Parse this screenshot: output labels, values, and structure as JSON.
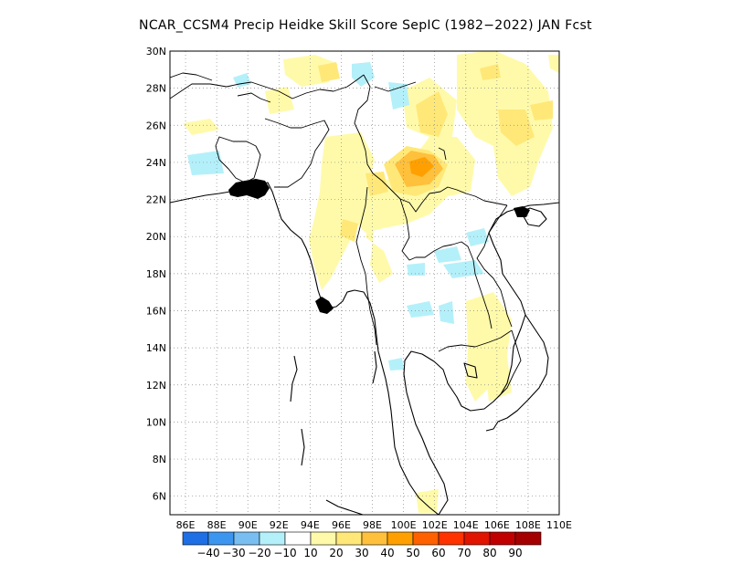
{
  "title": "NCAR_CCSM4 Precip Heidke Skill Score SepIC (1982−2022) JAN Fcst",
  "map": {
    "lat_ticks": [
      "30N",
      "28N",
      "26N",
      "24N",
      "22N",
      "20N",
      "18N",
      "16N",
      "14N",
      "12N",
      "10N",
      "8N",
      "6N"
    ],
    "lat_values": [
      30,
      28,
      26,
      24,
      22,
      20,
      18,
      16,
      14,
      12,
      10,
      8,
      6
    ],
    "lon_ticks": [
      "86E",
      "88E",
      "90E",
      "92E",
      "94E",
      "96E",
      "98E",
      "100E",
      "102E",
      "104E",
      "106E",
      "108E",
      "110E"
    ],
    "lon_values": [
      86,
      88,
      90,
      92,
      94,
      96,
      98,
      100,
      102,
      104,
      106,
      108,
      110
    ],
    "extent": {
      "lon_min": 85.0,
      "lon_max": 110.0,
      "lat_min": 5.0,
      "lat_max": 30.0
    },
    "gridlines": true
  },
  "colorbar": {
    "labels": [
      "−40",
      "−30",
      "−20",
      "−10",
      "10",
      "20",
      "30",
      "40",
      "50",
      "60",
      "70",
      "80",
      "90"
    ],
    "colors": [
      "#1e6ee6",
      "#3c96f0",
      "#78bef0",
      "#b4f0fa",
      "#ffffff",
      "#fffaaa",
      "#ffe878",
      "#ffc03c",
      "#ffa000",
      "#ff6000",
      "#ff3200",
      "#e11400",
      "#c00000",
      "#a50000"
    ]
  },
  "chart_data": {
    "type": "heatmap",
    "title": "NCAR_CCSM4 Precip Heidke Skill Score SepIC (1982−2022) JAN Fcst",
    "xlabel": "",
    "ylabel": "",
    "xlim": [
      85,
      110
    ],
    "ylim": [
      5,
      30
    ],
    "cells": [
      {
        "lon": 94.0,
        "lat": 22.5,
        "value": 20
      },
      {
        "lon": 95.5,
        "lat": 24.5,
        "value": 15
      },
      {
        "lon": 96.0,
        "lat": 21.0,
        "value": 20
      },
      {
        "lon": 95.0,
        "lat": 19.5,
        "value": 15
      },
      {
        "lon": 97.5,
        "lat": 25.5,
        "value": 15
      },
      {
        "lon": 99.5,
        "lat": 27.0,
        "value": 15
      },
      {
        "lon": 100.5,
        "lat": 24.0,
        "value": 40
      },
      {
        "lon": 100.8,
        "lat": 23.8,
        "value": 50
      },
      {
        "lon": 99.5,
        "lat": 22.5,
        "value": 20
      },
      {
        "lon": 101.5,
        "lat": 22.0,
        "value": 15
      },
      {
        "lon": 103.0,
        "lat": 24.5,
        "value": 15
      },
      {
        "lon": 106.5,
        "lat": 28.5,
        "value": 15
      },
      {
        "lon": 107.5,
        "lat": 25.0,
        "value": 15
      },
      {
        "lon": 96.5,
        "lat": 29.3,
        "value": 15
      },
      {
        "lon": 105.0,
        "lat": 16.0,
        "value": 15
      },
      {
        "lon": 106.5,
        "lat": 13.0,
        "value": 15
      },
      {
        "lon": 98.5,
        "lat": 19.5,
        "value": 15
      },
      {
        "lon": 101.0,
        "lat": 29.0,
        "value": 15
      },
      {
        "lon": 87.5,
        "lat": 23.5,
        "value": -15
      },
      {
        "lon": 99.0,
        "lat": 28.0,
        "value": -15
      },
      {
        "lon": 101.5,
        "lat": 18.5,
        "value": -15
      },
      {
        "lon": 103.5,
        "lat": 18.5,
        "value": -15
      },
      {
        "lon": 100.5,
        "lat": 16.0,
        "value": -15
      },
      {
        "lon": 102.0,
        "lat": 15.8,
        "value": -15
      },
      {
        "lon": 97.5,
        "lat": 29.5,
        "value": -15
      }
    ]
  }
}
